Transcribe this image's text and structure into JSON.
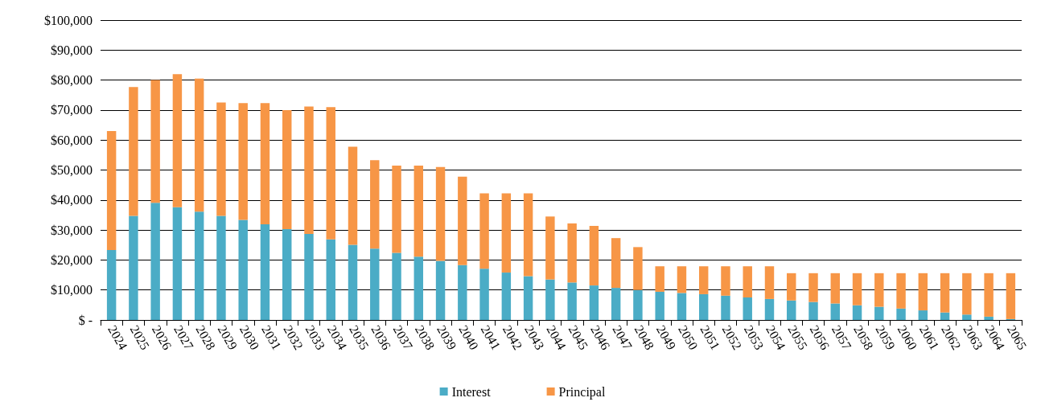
{
  "chart_data": {
    "type": "bar",
    "stacked": true,
    "legend": "bottom",
    "grid": "y",
    "categories": [
      "2024",
      "2025",
      "2026",
      "2027",
      "2028",
      "2029",
      "2030",
      "2031",
      "2032",
      "2033",
      "2034",
      "2035",
      "2036",
      "2037",
      "2038",
      "2039",
      "2040",
      "2041",
      "2042",
      "2043",
      "2044",
      "2045",
      "2046",
      "2047",
      "2048",
      "2049",
      "2050",
      "2051",
      "2052",
      "2053",
      "2054",
      "2055",
      "2056",
      "2057",
      "2058",
      "2059",
      "2060",
      "2061",
      "2062",
      "2063",
      "2064",
      "2065"
    ],
    "ylim": [
      0,
      100000
    ],
    "yticks": [
      {
        "value": 0,
        "label": "$ -"
      },
      {
        "value": 10000,
        "label": "$10,000"
      },
      {
        "value": 20000,
        "label": "$20,000"
      },
      {
        "value": 30000,
        "label": "$30,000"
      },
      {
        "value": 40000,
        "label": "$40,000"
      },
      {
        "value": 50000,
        "label": "$50,000"
      },
      {
        "value": 60000,
        "label": "$60,000"
      },
      {
        "value": 70000,
        "label": "$70,000"
      },
      {
        "value": 80000,
        "label": "$80,000"
      },
      {
        "value": 90000,
        "label": "$90,000"
      },
      {
        "value": 100000,
        "label": "$100,000"
      }
    ],
    "series": [
      {
        "name": "Interest",
        "color": "#4bacc6",
        "values": [
          23300,
          34700,
          39100,
          37600,
          36100,
          34700,
          33400,
          31900,
          30300,
          28700,
          26900,
          25100,
          23800,
          22400,
          21100,
          19700,
          18300,
          17100,
          15800,
          14600,
          13500,
          12500,
          11500,
          10700,
          10000,
          9400,
          9000,
          8600,
          8100,
          7500,
          7000,
          6500,
          6000,
          5500,
          4900,
          4400,
          3800,
          3200,
          2500,
          1800,
          1100,
          300
        ]
      },
      {
        "name": "Principal",
        "color": "#f79646",
        "values": [
          39700,
          43000,
          40900,
          44400,
          44400,
          37800,
          38900,
          40400,
          39700,
          42500,
          44100,
          32700,
          29500,
          29100,
          30400,
          31300,
          29500,
          25100,
          26400,
          27600,
          21000,
          19700,
          19900,
          16600,
          14300,
          8500,
          8900,
          9300,
          9800,
          10400,
          10900,
          9100,
          9600,
          10100,
          10700,
          11200,
          11800,
          12400,
          13100,
          13800,
          14500,
          15300
        ]
      }
    ]
  }
}
